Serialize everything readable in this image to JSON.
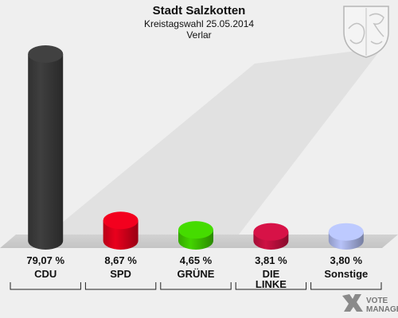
{
  "header": {
    "title": "Stadt Salzkotten",
    "subtitle": "Kreistagswahl 25.05.2014",
    "subtitle2": "Verlar"
  },
  "chart_data": {
    "type": "bar",
    "categories": [
      [
        "CDU"
      ],
      [
        "SPD"
      ],
      [
        "GRÜNE"
      ],
      [
        "DIE",
        "LINKE"
      ],
      [
        "Sonstige"
      ]
    ],
    "values": [
      79.07,
      8.67,
      4.65,
      3.81,
      3.8
    ],
    "value_labels": [
      "79,07 %",
      "8,67 %",
      "4,65 %",
      "3,81 %",
      "3,80 %"
    ],
    "colors": [
      "#3a3a3a",
      "#d9001b",
      "#3ec400",
      "#c0103f",
      "#a9b4e6"
    ],
    "ylim": [
      0,
      79.07
    ]
  },
  "watermark": {
    "line1": "VOTE",
    "line2": "MANAGER"
  },
  "icons": {
    "coat_of_arms": "coat-of-arms-icon",
    "logo": "votemanager-logo-icon"
  }
}
